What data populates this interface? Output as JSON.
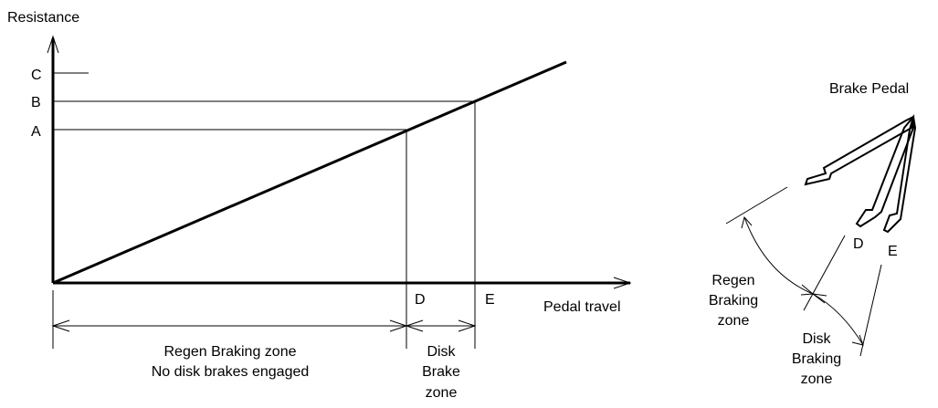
{
  "graph": {
    "y_axis_label": "Resistance",
    "y_levels": [
      "C",
      "B",
      "A"
    ],
    "x_points": [
      "D",
      "E"
    ],
    "x_axis_label": "Pedal travel",
    "regen_zone": [
      "Regen Braking zone",
      "No disk brakes engaged"
    ],
    "disk_zone": [
      "Disk",
      "Brake",
      "zone"
    ]
  },
  "pedal": {
    "title": "Brake Pedal",
    "positions": [
      "D",
      "E"
    ],
    "regen_zone": [
      "Regen",
      "Braking",
      "zone"
    ],
    "disk_zone": [
      "Disk",
      "Braking",
      "zone"
    ]
  }
}
